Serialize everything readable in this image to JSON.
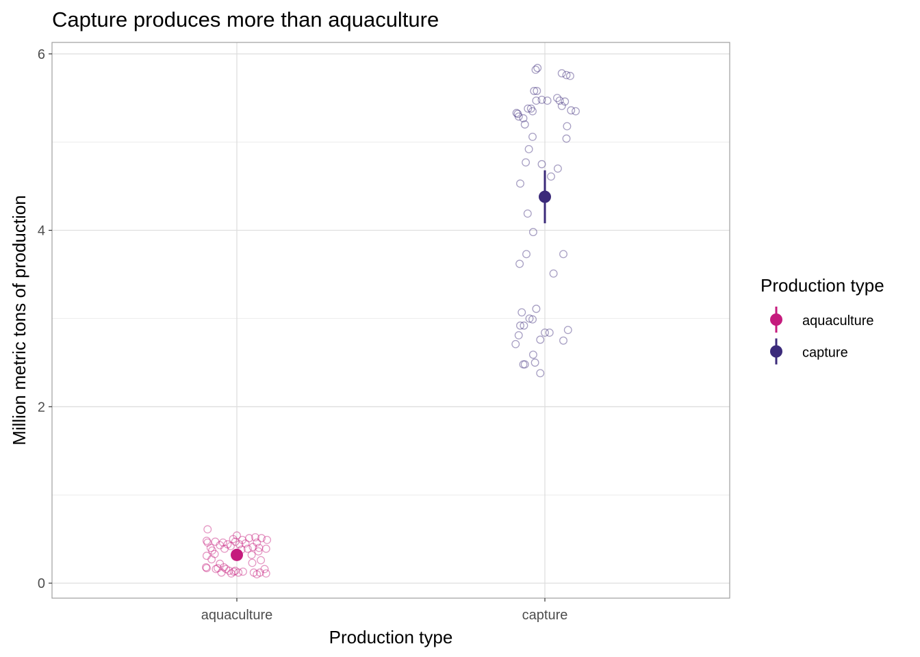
{
  "chart_data": {
    "type": "scatter",
    "title": "Capture produces more than aquaculture",
    "xlabel": "Production type",
    "ylabel": "Million metric tons of production",
    "categories": [
      "aquaculture",
      "capture"
    ],
    "ylim": [
      -0.17,
      6.13
    ],
    "yticks": [
      0,
      2,
      4,
      6
    ],
    "grid": true,
    "legend": {
      "title": "Production type",
      "position": "right",
      "entries": [
        "aquaculture",
        "capture"
      ]
    },
    "colors": {
      "aquaculture": "#c51b7d",
      "capture": "#3b2a7a"
    },
    "series": [
      {
        "name": "aquaculture",
        "color": "#c51b7d",
        "summary": {
          "mean": 0.32,
          "low": 0.28,
          "high": 0.36
        },
        "points": [
          {
            "x": -0.095,
            "y": 0.61
          },
          {
            "x": -0.098,
            "y": 0.48
          },
          {
            "x": -0.095,
            "y": 0.46
          },
          {
            "x": -0.085,
            "y": 0.4
          },
          {
            "x": -0.08,
            "y": 0.37
          },
          {
            "x": -0.072,
            "y": 0.33
          },
          {
            "x": -0.098,
            "y": 0.31
          },
          {
            "x": -0.082,
            "y": 0.27
          },
          {
            "x": -0.07,
            "y": 0.47
          },
          {
            "x": -0.055,
            "y": 0.43
          },
          {
            "x": -0.045,
            "y": 0.46
          },
          {
            "x": -0.04,
            "y": 0.39
          },
          {
            "x": -0.03,
            "y": 0.44
          },
          {
            "x": -0.02,
            "y": 0.42
          },
          {
            "x": -0.012,
            "y": 0.5
          },
          {
            "x": -0.005,
            "y": 0.47
          },
          {
            "x": 0.0,
            "y": 0.54
          },
          {
            "x": 0.008,
            "y": 0.44
          },
          {
            "x": 0.015,
            "y": 0.38
          },
          {
            "x": 0.018,
            "y": 0.49
          },
          {
            "x": 0.028,
            "y": 0.45
          },
          {
            "x": 0.035,
            "y": 0.39
          },
          {
            "x": 0.04,
            "y": 0.51
          },
          {
            "x": 0.048,
            "y": 0.32
          },
          {
            "x": 0.06,
            "y": 0.52
          },
          {
            "x": 0.065,
            "y": 0.46
          },
          {
            "x": 0.052,
            "y": 0.41
          },
          {
            "x": 0.07,
            "y": 0.36
          },
          {
            "x": 0.072,
            "y": 0.4
          },
          {
            "x": 0.08,
            "y": 0.51
          },
          {
            "x": 0.098,
            "y": 0.49
          },
          {
            "x": 0.095,
            "y": 0.39
          },
          {
            "x": -0.1,
            "y": 0.18
          },
          {
            "x": -0.098,
            "y": 0.17
          },
          {
            "x": -0.068,
            "y": 0.16
          },
          {
            "x": -0.062,
            "y": 0.17
          },
          {
            "x": -0.055,
            "y": 0.22
          },
          {
            "x": -0.05,
            "y": 0.12
          },
          {
            "x": -0.042,
            "y": 0.18
          },
          {
            "x": -0.035,
            "y": 0.16
          },
          {
            "x": -0.025,
            "y": 0.14
          },
          {
            "x": -0.018,
            "y": 0.11
          },
          {
            "x": -0.01,
            "y": 0.13
          },
          {
            "x": -0.005,
            "y": 0.14
          },
          {
            "x": 0.005,
            "y": 0.12
          },
          {
            "x": 0.02,
            "y": 0.13
          },
          {
            "x": 0.05,
            "y": 0.23
          },
          {
            "x": 0.055,
            "y": 0.12
          },
          {
            "x": 0.065,
            "y": 0.1
          },
          {
            "x": 0.075,
            "y": 0.12
          },
          {
            "x": 0.078,
            "y": 0.26
          },
          {
            "x": 0.09,
            "y": 0.16
          },
          {
            "x": 0.095,
            "y": 0.11
          }
        ]
      },
      {
        "name": "capture",
        "color": "#3b2a7a",
        "summary": {
          "mean": 4.38,
          "low": 4.08,
          "high": 4.68
        },
        "points": [
          {
            "x": -0.03,
            "y": 5.82
          },
          {
            "x": -0.024,
            "y": 5.84
          },
          {
            "x": 0.055,
            "y": 5.78
          },
          {
            "x": 0.07,
            "y": 5.76
          },
          {
            "x": 0.082,
            "y": 5.75
          },
          {
            "x": -0.035,
            "y": 5.58
          },
          {
            "x": -0.026,
            "y": 5.58
          },
          {
            "x": -0.028,
            "y": 5.47
          },
          {
            "x": -0.01,
            "y": 5.48
          },
          {
            "x": 0.008,
            "y": 5.47
          },
          {
            "x": 0.04,
            "y": 5.5
          },
          {
            "x": 0.048,
            "y": 5.47
          },
          {
            "x": 0.065,
            "y": 5.46
          },
          {
            "x": 0.055,
            "y": 5.41
          },
          {
            "x": 0.085,
            "y": 5.36
          },
          {
            "x": 0.1,
            "y": 5.35
          },
          {
            "x": -0.055,
            "y": 5.38
          },
          {
            "x": -0.045,
            "y": 5.38
          },
          {
            "x": -0.04,
            "y": 5.35
          },
          {
            "x": -0.092,
            "y": 5.33
          },
          {
            "x": -0.088,
            "y": 5.32
          },
          {
            "x": -0.085,
            "y": 5.29
          },
          {
            "x": -0.07,
            "y": 5.27
          },
          {
            "x": -0.065,
            "y": 5.2
          },
          {
            "x": 0.072,
            "y": 5.18
          },
          {
            "x": -0.04,
            "y": 5.06
          },
          {
            "x": 0.07,
            "y": 5.04
          },
          {
            "x": -0.052,
            "y": 4.92
          },
          {
            "x": -0.062,
            "y": 4.77
          },
          {
            "x": -0.01,
            "y": 4.75
          },
          {
            "x": 0.042,
            "y": 4.7
          },
          {
            "x": 0.02,
            "y": 4.61
          },
          {
            "x": -0.08,
            "y": 4.53
          },
          {
            "x": -0.056,
            "y": 4.19
          },
          {
            "x": -0.038,
            "y": 3.98
          },
          {
            "x": -0.06,
            "y": 3.73
          },
          {
            "x": 0.06,
            "y": 3.73
          },
          {
            "x": -0.082,
            "y": 3.62
          },
          {
            "x": 0.028,
            "y": 3.51
          },
          {
            "x": -0.028,
            "y": 3.11
          },
          {
            "x": -0.075,
            "y": 3.07
          },
          {
            "x": -0.05,
            "y": 3.0
          },
          {
            "x": -0.04,
            "y": 2.99
          },
          {
            "x": -0.08,
            "y": 2.92
          },
          {
            "x": -0.068,
            "y": 2.92
          },
          {
            "x": 0.075,
            "y": 2.87
          },
          {
            "x": 0.0,
            "y": 2.84
          },
          {
            "x": 0.015,
            "y": 2.84
          },
          {
            "x": -0.085,
            "y": 2.81
          },
          {
            "x": -0.015,
            "y": 2.76
          },
          {
            "x": 0.06,
            "y": 2.75
          },
          {
            "x": -0.095,
            "y": 2.71
          },
          {
            "x": -0.038,
            "y": 2.59
          },
          {
            "x": -0.032,
            "y": 2.5
          },
          {
            "x": -0.07,
            "y": 2.48
          },
          {
            "x": -0.065,
            "y": 2.48
          },
          {
            "x": -0.015,
            "y": 2.38
          }
        ]
      }
    ]
  }
}
